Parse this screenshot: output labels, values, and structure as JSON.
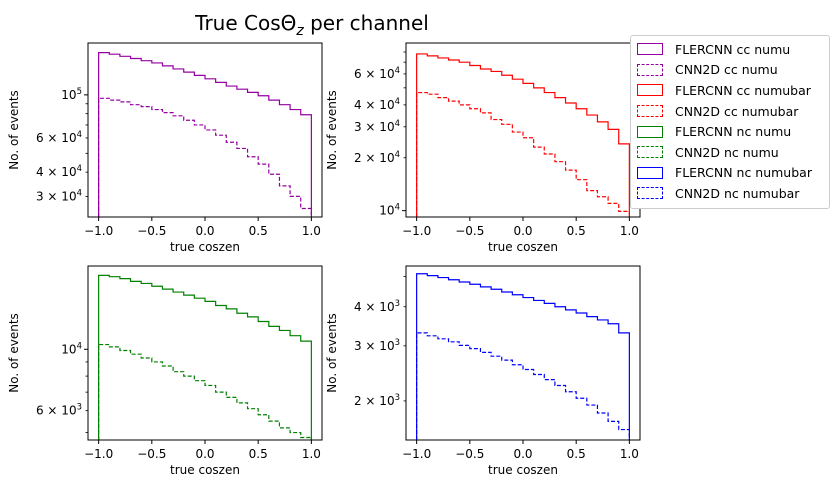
{
  "figure": {
    "title_main": "True CosΘ",
    "title_sub": "z",
    "title_tail": " per channel"
  },
  "legend": {
    "items": [
      {
        "label": "FLERCNN cc numu",
        "color": "#9400a0",
        "style": "solid"
      },
      {
        "label": "CNN2D cc numu",
        "color": "#9400a0",
        "style": "dashed"
      },
      {
        "label": "FLERCNN cc numubar",
        "color": "#ff0000",
        "style": "solid"
      },
      {
        "label": "CNN2D cc numubar",
        "color": "#ff0000",
        "style": "dashed"
      },
      {
        "label": "FLERCNN nc numu",
        "color": "#008000",
        "style": "solid"
      },
      {
        "label": "CNN2D nc numu",
        "color": "#008000",
        "style": "dashed"
      },
      {
        "label": "FLERCNN nc numubar",
        "color": "#0000ff",
        "style": "solid"
      },
      {
        "label": "CNN2D nc numubar",
        "color": "#0000ff",
        "style": "dashed"
      }
    ]
  },
  "chart_data": [
    {
      "type": "histogram-step",
      "channel": "cc numu",
      "color": "#9400a0",
      "xlabel": "true coszen",
      "ylabel": "No. of events",
      "yscale": "log",
      "xlim": [
        -1.1,
        1.1
      ],
      "ylim": [
        23500,
        185000
      ],
      "xticks": [
        -1.0,
        -0.5,
        0.0,
        0.5,
        1.0
      ],
      "xtick_labels": [
        "−1.0",
        "−0.5",
        "0.0",
        "0.5",
        "1.0"
      ],
      "ytick_major": [
        {
          "value": 100000,
          "base": "10",
          "exp": "5"
        }
      ],
      "ytick_minor": [
        {
          "value": 30000,
          "mant": "3",
          "base": "10",
          "exp": "4"
        },
        {
          "value": 40000,
          "mant": "4",
          "base": "10",
          "exp": "4"
        },
        {
          "value": 60000,
          "mant": "6",
          "base": "10",
          "exp": "4"
        }
      ],
      "ytick_unlabeled": [
        20000,
        50000,
        70000,
        80000,
        90000
      ],
      "bin_edges": [
        -1.0,
        -0.9,
        -0.8,
        -0.7,
        -0.6,
        -0.5,
        -0.4,
        -0.3,
        -0.2,
        -0.1,
        0.0,
        0.1,
        0.2,
        0.3,
        0.4,
        0.5,
        0.6,
        0.7,
        0.8,
        0.9,
        1.0
      ],
      "series": [
        {
          "name": "FLERCNN cc numu",
          "style": "solid",
          "values": [
            165000,
            162000,
            158000,
            154000,
            150000,
            146000,
            141000,
            136000,
            131000,
            126000,
            121000,
            116000,
            111000,
            107000,
            103000,
            99000,
            94000,
            89000,
            84000,
            79000
          ]
        },
        {
          "name": "CNN2D cc numu",
          "style": "dashed",
          "values": [
            96000,
            94000,
            92000,
            89000,
            87000,
            84000,
            81000,
            78000,
            74000,
            70000,
            66000,
            62000,
            57000,
            53000,
            48000,
            44000,
            39000,
            34000,
            30000,
            26000
          ]
        }
      ]
    },
    {
      "type": "histogram-step",
      "channel": "cc numubar",
      "color": "#ff0000",
      "xlabel": "true coszen",
      "ylabel": "No. of events",
      "yscale": "log",
      "xlim": [
        -1.1,
        1.1
      ],
      "ylim": [
        9200,
        90000
      ],
      "xticks": [
        -1.0,
        -0.5,
        0.0,
        0.5,
        1.0
      ],
      "xtick_labels": [
        "−1.0",
        "−0.5",
        "0.0",
        "0.5",
        "1.0"
      ],
      "ytick_major": [
        {
          "value": 10000,
          "base": "10",
          "exp": "4"
        }
      ],
      "ytick_minor": [
        {
          "value": 20000,
          "mant": "2",
          "base": "10",
          "exp": "4"
        },
        {
          "value": 30000,
          "mant": "3",
          "base": "10",
          "exp": "4"
        },
        {
          "value": 40000,
          "mant": "4",
          "base": "10",
          "exp": "4"
        },
        {
          "value": 60000,
          "mant": "6",
          "base": "10",
          "exp": "4"
        }
      ],
      "ytick_unlabeled": [
        50000,
        70000,
        80000
      ],
      "bin_edges": [
        -1.0,
        -0.9,
        -0.8,
        -0.7,
        -0.6,
        -0.5,
        -0.4,
        -0.3,
        -0.2,
        -0.1,
        0.0,
        0.1,
        0.2,
        0.3,
        0.4,
        0.5,
        0.6,
        0.7,
        0.8,
        0.9,
        1.0
      ],
      "series": [
        {
          "name": "FLERCNN cc numubar",
          "style": "solid",
          "values": [
            78000,
            76000,
            74000,
            72000,
            70000,
            67000,
            64000,
            62000,
            59000,
            56000,
            53000,
            50000,
            47000,
            44000,
            41000,
            38000,
            35000,
            32000,
            29000,
            24000
          ]
        },
        {
          "name": "CNN2D cc numubar",
          "style": "dashed",
          "values": [
            47000,
            46000,
            44000,
            42000,
            40000,
            38000,
            36000,
            33000,
            31000,
            28000,
            26000,
            23000,
            21000,
            19000,
            17000,
            15000,
            13000,
            12000,
            11000,
            9900
          ]
        }
      ]
    },
    {
      "type": "histogram-step",
      "channel": "nc numu",
      "color": "#008000",
      "xlabel": "true coszen",
      "ylabel": "No. of events",
      "yscale": "log",
      "xlim": [
        -1.1,
        1.1
      ],
      "ylim": [
        4700,
        20000
      ],
      "xticks": [
        -1.0,
        -0.5,
        0.0,
        0.5,
        1.0
      ],
      "xtick_labels": [
        "−1.0",
        "−0.5",
        "0.0",
        "0.5",
        "1.0"
      ],
      "ytick_major": [
        {
          "value": 10000,
          "base": "10",
          "exp": "4"
        }
      ],
      "ytick_minor": [
        {
          "value": 6000,
          "mant": "6",
          "base": "10",
          "exp": "3"
        }
      ],
      "ytick_unlabeled": [
        5000,
        7000,
        8000,
        9000
      ],
      "bin_edges": [
        -1.0,
        -0.9,
        -0.8,
        -0.7,
        -0.6,
        -0.5,
        -0.4,
        -0.3,
        -0.2,
        -0.1,
        0.0,
        0.1,
        0.2,
        0.3,
        0.4,
        0.5,
        0.6,
        0.7,
        0.8,
        0.9,
        1.0
      ],
      "series": [
        {
          "name": "FLERCNN nc numu",
          "style": "solid",
          "values": [
            18500,
            18300,
            18000,
            17600,
            17300,
            16900,
            16500,
            16100,
            15700,
            15300,
            14900,
            14400,
            14000,
            13500,
            13100,
            12600,
            12100,
            11700,
            11200,
            10700
          ]
        },
        {
          "name": "CNN2D nc numu",
          "style": "dashed",
          "values": [
            10400,
            10200,
            9900,
            9600,
            9300,
            9000,
            8700,
            8300,
            8000,
            7700,
            7400,
            7000,
            6700,
            6400,
            6100,
            5800,
            5500,
            5200,
            5000,
            4800
          ]
        }
      ]
    },
    {
      "type": "histogram-step",
      "channel": "nc numubar",
      "color": "#0000ff",
      "xlabel": "true coszen",
      "ylabel": "No. of events",
      "yscale": "log",
      "xlim": [
        -1.1,
        1.1
      ],
      "ylim": [
        1500,
        5400
      ],
      "xticks": [
        -1.0,
        -0.5,
        0.0,
        0.5,
        1.0
      ],
      "xtick_labels": [
        "−1.0",
        "−0.5",
        "0.0",
        "0.5",
        "1.0"
      ],
      "ytick_major": [],
      "ytick_minor": [
        {
          "value": 2000,
          "mant": "2",
          "base": "10",
          "exp": "3"
        },
        {
          "value": 3000,
          "mant": "3",
          "base": "10",
          "exp": "3"
        },
        {
          "value": 4000,
          "mant": "4",
          "base": "10",
          "exp": "3"
        }
      ],
      "ytick_unlabeled": [
        5000
      ],
      "bin_edges": [
        -1.0,
        -0.9,
        -0.8,
        -0.7,
        -0.6,
        -0.5,
        -0.4,
        -0.3,
        -0.2,
        -0.1,
        0.0,
        0.1,
        0.2,
        0.3,
        0.4,
        0.5,
        0.6,
        0.7,
        0.8,
        0.9,
        1.0
      ],
      "series": [
        {
          "name": "FLERCNN nc numubar",
          "style": "solid",
          "values": [
            5100,
            5030,
            4960,
            4880,
            4800,
            4720,
            4630,
            4550,
            4460,
            4370,
            4280,
            4190,
            4100,
            4000,
            3910,
            3820,
            3720,
            3630,
            3530,
            3300
          ]
        },
        {
          "name": "CNN2D nc numubar",
          "style": "dashed",
          "values": [
            3300,
            3230,
            3160,
            3090,
            3010,
            2940,
            2860,
            2780,
            2700,
            2610,
            2520,
            2430,
            2340,
            2240,
            2140,
            2040,
            1940,
            1830,
            1720,
            1620
          ]
        }
      ]
    }
  ]
}
